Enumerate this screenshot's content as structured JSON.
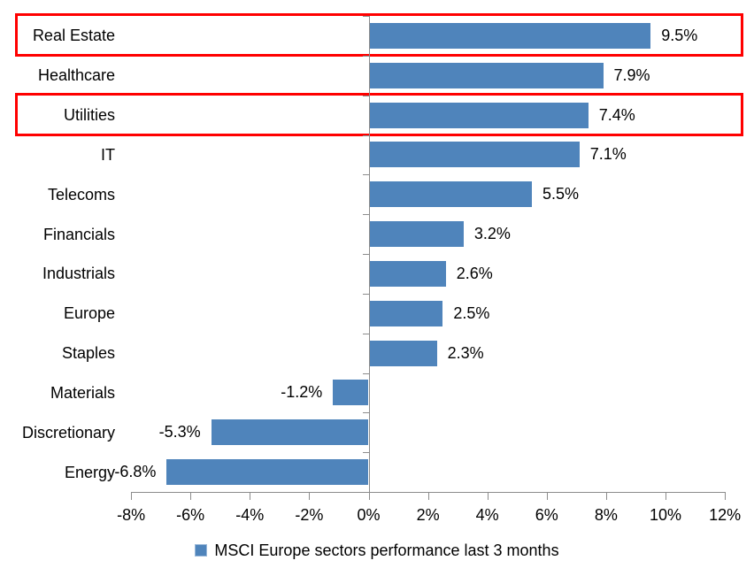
{
  "chart_data": {
    "type": "bar",
    "orientation": "horizontal",
    "categories": [
      "Real Estate",
      "Healthcare",
      "Utilities",
      "IT",
      "Telecoms",
      "Financials",
      "Industrials",
      "Europe",
      "Staples",
      "Materials",
      "Discretionary",
      "Energy"
    ],
    "values": [
      9.5,
      7.9,
      7.4,
      7.1,
      5.5,
      3.2,
      2.6,
      2.5,
      2.3,
      -1.2,
      -5.3,
      -6.8
    ],
    "value_labels": [
      "9.5%",
      "7.9%",
      "7.4%",
      "7.1%",
      "5.5%",
      "3.2%",
      "2.6%",
      "2.5%",
      "2.3%",
      "-1.2%",
      "-5.3%",
      "-6.8%"
    ],
    "x_tick_labels": [
      "-8%",
      "-6%",
      "-4%",
      "-2%",
      "0%",
      "2%",
      "4%",
      "6%",
      "8%",
      "10%",
      "12%"
    ],
    "x_tick_values": [
      -8,
      -6,
      -4,
      -2,
      0,
      2,
      4,
      6,
      8,
      10,
      12
    ],
    "xlim": [
      -8,
      12
    ],
    "title": "",
    "xlabel": "",
    "ylabel": "",
    "legend": "MSCI Europe sectors performance last 3 months",
    "legend_position": "bottom-center",
    "grid": "off",
    "bar_color": "#4f84bb",
    "legend_swatch_border_color": "#9ab8d9",
    "axis_color": "#8c8c8c",
    "text_color": "#000000",
    "highlight_box_color": "#ff0000",
    "highlighted_categories": [
      "Real Estate",
      "Utilities"
    ]
  }
}
